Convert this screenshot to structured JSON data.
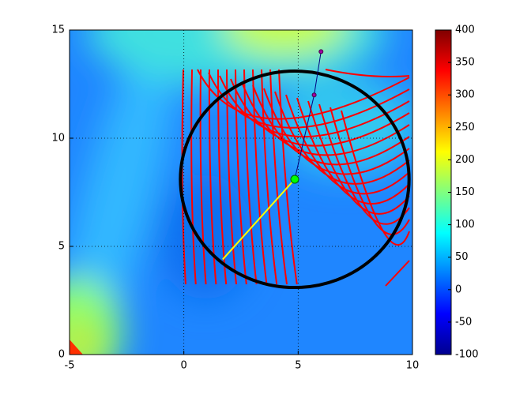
{
  "chart_data": {
    "type": "contour",
    "xlim": [
      -5,
      10
    ],
    "ylim": [
      0,
      15
    ],
    "xticks": [
      -5,
      0,
      5,
      10
    ],
    "yticks": [
      0,
      5,
      10,
      15
    ],
    "grid": true,
    "colorbar": {
      "clim": [
        -100,
        400
      ],
      "ticks": [
        -100,
        -50,
        0,
        50,
        100,
        150,
        200,
        250,
        300,
        350,
        400
      ],
      "colormap": "jet"
    },
    "trust_region": {
      "center": [
        4.85,
        8.1
      ],
      "radius": 5,
      "color": "#000000"
    },
    "path": {
      "x": [
        6.0,
        5.7,
        4.85
      ],
      "y": [
        14.0,
        12.0,
        8.1
      ],
      "color": "#000080"
    },
    "step": {
      "x": [
        4.85,
        1.7
      ],
      "y": [
        8.1,
        4.4
      ],
      "color": "#ffff00"
    },
    "current": {
      "x": 4.85,
      "y": 8.1,
      "color": "#00ff00"
    }
  }
}
